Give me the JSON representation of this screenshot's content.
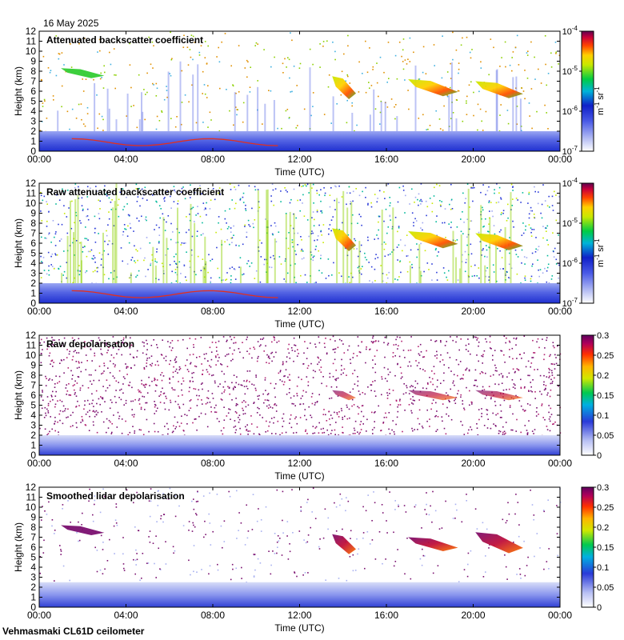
{
  "header": {
    "date": "16 May 2025"
  },
  "footer": {
    "station": "Vehmasmaki CL61D ceilometer"
  },
  "colors": {
    "background": "#ffffff",
    "low_noise_blue": "#6f7ff0",
    "boundary_layer_blue": "#1f2fd0",
    "dense_purple": "#7a1070"
  },
  "chart_data": [
    {
      "type": "heatmap",
      "title": "Attenuated backscatter coefficient",
      "xlabel": "Time (UTC)",
      "ylabel": "Height (km)",
      "xticks": [
        "00:00",
        "04:00",
        "08:00",
        "12:00",
        "16:00",
        "20:00",
        "00:00"
      ],
      "xlim_hours": [
        0,
        24
      ],
      "ylim": [
        0,
        12
      ],
      "yticks": [
        "0",
        "1",
        "2",
        "3",
        "4",
        "5",
        "6",
        "7",
        "8",
        "9",
        "10",
        "11",
        "12"
      ],
      "colorbar": {
        "scale": "log",
        "range": [
          1e-07,
          0.0001
        ],
        "tick_base": "10",
        "tick_exponents": [
          "-7",
          "-6",
          "-5",
          "-4"
        ],
        "unit": "m",
        "unit_exp": "-1",
        "unit2": "sr",
        "unit2_exp": "-1"
      },
      "features": [
        {
          "kind": "boundary_layer",
          "time_hours": [
            0,
            24
          ],
          "height_km": [
            0,
            2.0
          ]
        },
        {
          "kind": "cloud_layer",
          "time_hours": [
            13.5,
            14.6
          ],
          "height_km": [
            5.2,
            7.5
          ]
        },
        {
          "kind": "cloud_layer",
          "time_hours": [
            17.0,
            19.3
          ],
          "height_km": [
            5.5,
            7.2
          ]
        },
        {
          "kind": "cloud_layer",
          "time_hours": [
            20.1,
            22.3
          ],
          "height_km": [
            5.3,
            7.0
          ]
        },
        {
          "kind": "thin_cloud",
          "time_hours": [
            1.0,
            3.0
          ],
          "height_km": [
            7.3,
            8.3
          ]
        }
      ]
    },
    {
      "type": "heatmap",
      "title": "Raw attenuated backscatter coefficient",
      "xlabel": "Time (UTC)",
      "ylabel": "Height (km)",
      "xticks": [
        "00:00",
        "04:00",
        "08:00",
        "12:00",
        "16:00",
        "20:00",
        "00:00"
      ],
      "xlim_hours": [
        0,
        24
      ],
      "ylim": [
        0,
        12
      ],
      "yticks": [
        "0",
        "1",
        "2",
        "3",
        "4",
        "5",
        "6",
        "7",
        "8",
        "9",
        "10",
        "11",
        "12"
      ],
      "colorbar": {
        "scale": "log",
        "range": [
          1e-07,
          0.0001
        ],
        "tick_base": "10",
        "tick_exponents": [
          "-7",
          "-6",
          "-5",
          "-4"
        ],
        "unit": "m",
        "unit_exp": "-1",
        "unit2": "sr",
        "unit2_exp": "-1"
      },
      "features": [
        {
          "kind": "boundary_layer",
          "time_hours": [
            0,
            24
          ],
          "height_km": [
            0,
            2.0
          ]
        },
        {
          "kind": "cloud_layer",
          "time_hours": [
            13.5,
            14.6
          ],
          "height_km": [
            5.2,
            7.5
          ]
        },
        {
          "kind": "cloud_layer",
          "time_hours": [
            17.0,
            19.3
          ],
          "height_km": [
            5.5,
            7.2
          ]
        },
        {
          "kind": "cloud_layer",
          "time_hours": [
            20.1,
            22.3
          ],
          "height_km": [
            5.3,
            7.0
          ]
        }
      ]
    },
    {
      "type": "heatmap",
      "title": "Raw depolarisation",
      "xlabel": "Time (UTC)",
      "ylabel": "Height (km)",
      "xticks": [
        "00:00",
        "04:00",
        "08:00",
        "12:00",
        "16:00",
        "20:00",
        "00:00"
      ],
      "xlim_hours": [
        0,
        24
      ],
      "ylim": [
        0,
        12
      ],
      "yticks": [
        "0",
        "1",
        "2",
        "3",
        "4",
        "5",
        "6",
        "7",
        "8",
        "9",
        "10",
        "11",
        "12"
      ],
      "colorbar": {
        "scale": "linear",
        "range": [
          0,
          0.3
        ],
        "ticks": [
          "0",
          "0.05",
          "0.1",
          "0.15",
          "0.2",
          "0.25",
          "0.3"
        ]
      },
      "features": [
        {
          "kind": "boundary_layer",
          "time_hours": [
            0,
            24
          ],
          "height_km": [
            0,
            2.0
          ]
        },
        {
          "kind": "cloud_layer",
          "time_hours": [
            13.5,
            14.6
          ],
          "height_km": [
            5.5,
            6.5
          ]
        },
        {
          "kind": "cloud_layer",
          "time_hours": [
            17.0,
            19.3
          ],
          "height_km": [
            5.5,
            6.5
          ]
        },
        {
          "kind": "cloud_layer",
          "time_hours": [
            20.1,
            22.3
          ],
          "height_km": [
            5.5,
            6.5
          ]
        }
      ]
    },
    {
      "type": "heatmap",
      "title": "Smoothed lidar depolarisation",
      "xlabel": "Time (UTC)",
      "ylabel": "Height (km)",
      "xticks": [
        "00:00",
        "04:00",
        "08:00",
        "12:00",
        "16:00",
        "20:00",
        "00:00"
      ],
      "xlim_hours": [
        0,
        24
      ],
      "ylim": [
        0,
        12
      ],
      "yticks": [
        "0",
        "1",
        "2",
        "3",
        "4",
        "5",
        "6",
        "7",
        "8",
        "9",
        "10",
        "11",
        "12"
      ],
      "colorbar": {
        "scale": "linear",
        "range": [
          0,
          0.3
        ],
        "ticks": [
          "0",
          "0.05",
          "0.1",
          "0.15",
          "0.2",
          "0.25",
          "0.3"
        ]
      },
      "features": [
        {
          "kind": "boundary_layer",
          "time_hours": [
            0,
            24
          ],
          "height_km": [
            0,
            2.5
          ]
        },
        {
          "kind": "cloud_layer",
          "time_hours": [
            13.5,
            14.6
          ],
          "height_km": [
            5.3,
            7.3
          ]
        },
        {
          "kind": "cloud_layer",
          "time_hours": [
            17.0,
            19.3
          ],
          "height_km": [
            5.6,
            7.0
          ]
        },
        {
          "kind": "cloud_layer",
          "time_hours": [
            20.1,
            22.3
          ],
          "height_km": [
            5.4,
            7.5
          ]
        },
        {
          "kind": "thin_cloud",
          "time_hours": [
            1.0,
            3.0
          ],
          "height_km": [
            7.2,
            8.2
          ]
        }
      ]
    }
  ]
}
